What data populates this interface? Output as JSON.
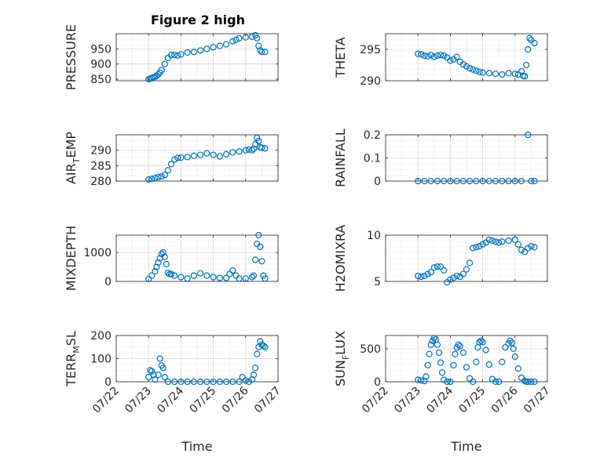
{
  "title": "Figure 2 high",
  "colors": {
    "marker": "#0072BD",
    "axis": "#262626",
    "grid": "#c8c8c8",
    "background": "#ffffff"
  },
  "chart_data": [
    {
      "type": "scatter",
      "ylabel": "PRESSURE",
      "xlabel": "",
      "ylim": [
        845,
        1000
      ],
      "yticks": [
        850,
        900,
        950
      ],
      "xlim": [
        0,
        5
      ],
      "xticklabels": [],
      "grid": true,
      "minor_grid": true,
      "x": [
        1.0,
        1.05,
        1.1,
        1.15,
        1.2,
        1.25,
        1.3,
        1.35,
        1.4,
        1.5,
        1.6,
        1.7,
        1.8,
        1.9,
        2.0,
        2.2,
        2.4,
        2.6,
        2.8,
        3.0,
        3.2,
        3.4,
        3.6,
        3.7,
        3.8,
        4.0,
        4.2,
        4.3,
        4.35,
        4.4,
        4.45,
        4.5,
        4.6
      ],
      "y": [
        850,
        852,
        854,
        856,
        858,
        862,
        866,
        872,
        880,
        900,
        920,
        930,
        930,
        928,
        932,
        938,
        940,
        945,
        950,
        955,
        960,
        965,
        975,
        980,
        985,
        988,
        990,
        995,
        985,
        960,
        945,
        940,
        940
      ]
    },
    {
      "type": "scatter",
      "ylabel": "THETA",
      "xlabel": "",
      "ylim": [
        290,
        297.5
      ],
      "yticks": [
        290,
        295
      ],
      "xlim": [
        0,
        5
      ],
      "xticklabels": [],
      "grid": true,
      "minor_grid": true,
      "x": [
        1.0,
        1.1,
        1.2,
        1.3,
        1.4,
        1.5,
        1.6,
        1.7,
        1.8,
        1.9,
        2.0,
        2.1,
        2.2,
        2.3,
        2.4,
        2.5,
        2.6,
        2.7,
        2.8,
        2.9,
        3.0,
        3.2,
        3.4,
        3.6,
        3.8,
        4.0,
        4.1,
        4.2,
        4.25,
        4.3,
        4.35,
        4.4,
        4.45,
        4.5,
        4.6
      ],
      "y": [
        294.3,
        294.2,
        294.0,
        293.9,
        294.1,
        293.8,
        294.0,
        294.1,
        294.0,
        293.7,
        293.2,
        293.4,
        293.8,
        293.0,
        292.6,
        292.3,
        292.0,
        291.8,
        291.6,
        291.4,
        291.3,
        291.2,
        291.1,
        291.0,
        291.2,
        291.1,
        291.0,
        291.5,
        290.8,
        290.7,
        292.5,
        295.0,
        296.8,
        296.5,
        296.0
      ]
    },
    {
      "type": "scatter",
      "ylabel": "AIR_TEMP",
      "xlabel": "",
      "ylim": [
        280,
        295
      ],
      "yticks": [
        280,
        285,
        290
      ],
      "xlim": [
        0,
        5
      ],
      "xticklabels": [],
      "grid": true,
      "minor_grid": true,
      "x": [
        1.0,
        1.1,
        1.2,
        1.3,
        1.4,
        1.5,
        1.6,
        1.7,
        1.8,
        1.9,
        2.0,
        2.2,
        2.4,
        2.6,
        2.8,
        3.0,
        3.2,
        3.4,
        3.6,
        3.8,
        4.0,
        4.1,
        4.2,
        4.25,
        4.3,
        4.35,
        4.4,
        4.45,
        4.5,
        4.6
      ],
      "y": [
        280.5,
        280.7,
        281.0,
        281.3,
        281.5,
        282.0,
        283.5,
        285.5,
        287.0,
        287.5,
        287.6,
        287.8,
        288.2,
        288.5,
        289.0,
        288.5,
        288.0,
        288.7,
        289.3,
        289.6,
        290.0,
        290.2,
        290.0,
        290.5,
        292.0,
        294.0,
        293.0,
        291.0,
        290.8,
        290.6
      ]
    },
    {
      "type": "scatter",
      "ylabel": "RAINFALL",
      "xlabel": "",
      "ylim": [
        0,
        0.2
      ],
      "yticks": [
        0,
        0.1,
        0.2
      ],
      "xlim": [
        0,
        5
      ],
      "xticklabels": [],
      "grid": true,
      "minor_grid": true,
      "x": [
        1.0,
        1.2,
        1.4,
        1.6,
        1.8,
        2.0,
        2.2,
        2.4,
        2.6,
        2.8,
        3.0,
        3.2,
        3.4,
        3.6,
        3.8,
        4.0,
        4.2,
        4.4,
        4.5,
        4.6
      ],
      "y": [
        0,
        0,
        0,
        0,
        0,
        0,
        0,
        0,
        0,
        0,
        0,
        0,
        0,
        0,
        0,
        0,
        0,
        0.2,
        0,
        0
      ]
    },
    {
      "type": "scatter",
      "ylabel": "MIXDEPTH",
      "xlabel": "",
      "ylim": [
        0,
        1600
      ],
      "yticks": [
        0,
        1000
      ],
      "xlim": [
        0,
        5
      ],
      "xticklabels": [],
      "grid": true,
      "minor_grid": true,
      "x": [
        1.0,
        1.1,
        1.2,
        1.25,
        1.3,
        1.35,
        1.4,
        1.45,
        1.5,
        1.55,
        1.6,
        1.65,
        1.7,
        1.8,
        2.0,
        2.2,
        2.4,
        2.6,
        2.8,
        3.0,
        3.2,
        3.4,
        3.5,
        3.6,
        3.7,
        3.8,
        4.0,
        4.2,
        4.25,
        4.3,
        4.35,
        4.4,
        4.45,
        4.5,
        4.55,
        4.6
      ],
      "y": [
        80,
        200,
        350,
        500,
        650,
        800,
        950,
        1000,
        850,
        600,
        300,
        250,
        250,
        200,
        150,
        100,
        200,
        280,
        200,
        150,
        120,
        120,
        250,
        380,
        200,
        100,
        100,
        150,
        200,
        750,
        1300,
        1600,
        1200,
        700,
        200,
        100
      ]
    },
    {
      "type": "scatter",
      "ylabel": "H2OMIXRA",
      "xlabel": "",
      "ylim": [
        5,
        10
      ],
      "yticks": [
        5,
        10
      ],
      "xlim": [
        0,
        5
      ],
      "xticklabels": [],
      "grid": true,
      "minor_grid": true,
      "x": [
        1.0,
        1.1,
        1.2,
        1.3,
        1.4,
        1.5,
        1.6,
        1.7,
        1.8,
        1.9,
        2.0,
        2.1,
        2.2,
        2.3,
        2.4,
        2.5,
        2.6,
        2.7,
        2.8,
        2.9,
        3.0,
        3.1,
        3.2,
        3.3,
        3.4,
        3.5,
        3.6,
        3.8,
        4.0,
        4.1,
        4.2,
        4.3,
        4.4,
        4.5,
        4.6
      ],
      "y": [
        5.6,
        5.5,
        5.6,
        5.8,
        6.0,
        6.5,
        6.6,
        6.6,
        6.2,
        4.9,
        5.2,
        5.4,
        5.6,
        5.5,
        5.8,
        6.3,
        7.0,
        8.6,
        8.7,
        8.8,
        9.0,
        9.2,
        9.5,
        9.4,
        9.3,
        9.2,
        9.3,
        9.4,
        9.5,
        9.0,
        8.4,
        8.2,
        8.6,
        8.8,
        8.7
      ]
    },
    {
      "type": "scatter",
      "ylabel": "TERR_MSL",
      "xlabel": "Time",
      "ylim": [
        0,
        200
      ],
      "yticks": [
        0,
        100,
        200
      ],
      "xlim": [
        0,
        5
      ],
      "xticklabels": [
        "07/22",
        "07/23",
        "07/24",
        "07/25",
        "07/26",
        "07/27"
      ],
      "grid": true,
      "minor_grid": true,
      "x": [
        1.0,
        1.05,
        1.1,
        1.15,
        1.2,
        1.3,
        1.35,
        1.4,
        1.45,
        1.5,
        1.6,
        1.8,
        2.0,
        2.2,
        2.4,
        2.6,
        2.8,
        3.0,
        3.2,
        3.4,
        3.6,
        3.8,
        3.9,
        4.0,
        4.1,
        4.2,
        4.25,
        4.3,
        4.35,
        4.4,
        4.45,
        4.5,
        4.55,
        4.6
      ],
      "y": [
        20,
        50,
        45,
        30,
        10,
        30,
        100,
        70,
        60,
        20,
        0,
        0,
        0,
        0,
        0,
        0,
        0,
        0,
        0,
        0,
        0,
        0,
        20,
        5,
        0,
        10,
        30,
        60,
        120,
        150,
        175,
        160,
        155,
        150
      ]
    },
    {
      "type": "scatter",
      "ylabel": "SUN_FLUX",
      "xlabel": "Time",
      "ylim": [
        0,
        700
      ],
      "yticks": [
        0,
        500
      ],
      "xlim": [
        0,
        5
      ],
      "xticklabels": [
        "07/22",
        "07/23",
        "07/24",
        "07/25",
        "07/26",
        "07/27"
      ],
      "grid": true,
      "minor_grid": true,
      "x": [
        1.0,
        1.1,
        1.2,
        1.25,
        1.3,
        1.35,
        1.4,
        1.45,
        1.5,
        1.55,
        1.6,
        1.65,
        1.7,
        1.75,
        1.8,
        1.9,
        2.0,
        2.1,
        2.15,
        2.2,
        2.25,
        2.3,
        2.4,
        2.5,
        2.6,
        2.7,
        2.8,
        2.85,
        2.9,
        2.95,
        3.0,
        3.1,
        3.2,
        3.3,
        3.4,
        3.5,
        3.6,
        3.7,
        3.8,
        3.85,
        3.9,
        3.95,
        4.0,
        4.1,
        4.2,
        4.3,
        4.35,
        4.4,
        4.5,
        4.6
      ],
      "y": [
        30,
        20,
        10,
        80,
        250,
        420,
        560,
        620,
        660,
        640,
        560,
        440,
        290,
        140,
        30,
        0,
        0,
        250,
        420,
        520,
        560,
        540,
        440,
        220,
        50,
        0,
        300,
        520,
        600,
        620,
        600,
        480,
        260,
        40,
        0,
        0,
        300,
        520,
        580,
        620,
        590,
        500,
        380,
        200,
        60,
        10,
        0,
        0,
        0,
        0
      ]
    }
  ]
}
